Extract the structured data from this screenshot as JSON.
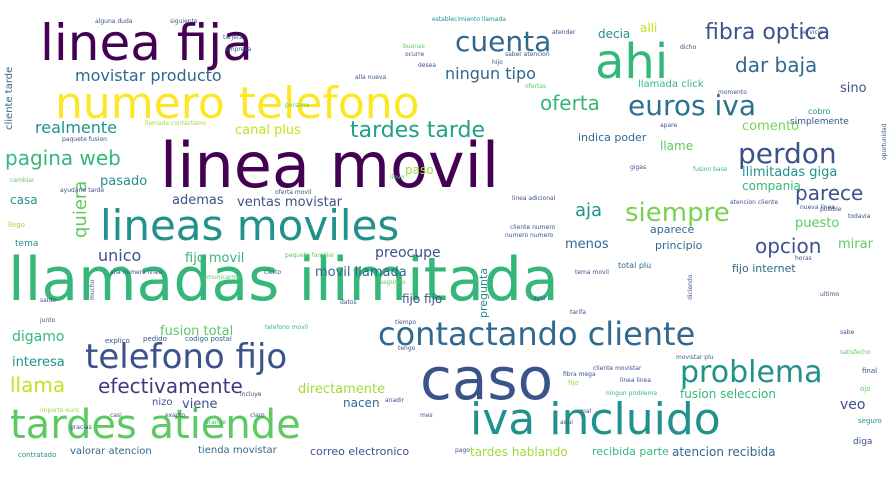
{
  "words": [
    {
      "text": "linea movil",
      "color": "#440154"
    },
    {
      "text": "llamadas ilimitada",
      "color": "#35b779"
    },
    {
      "text": "numero telefono",
      "color": "#fde725"
    },
    {
      "text": "linea fija",
      "color": "#440154"
    },
    {
      "text": "caso",
      "color": "#3b528b"
    },
    {
      "text": "lineas moviles",
      "color": "#21918c"
    },
    {
      "text": "tardes atiende",
      "color": "#5ec962"
    },
    {
      "text": "iva incluido",
      "color": "#21918c"
    },
    {
      "text": "contactando cliente",
      "color": "#31688e"
    },
    {
      "text": "telefono fijo",
      "color": "#3b528b"
    },
    {
      "text": "ahi",
      "color": "#35b779"
    },
    {
      "text": "cuenta",
      "color": "#31688e"
    },
    {
      "text": "problema",
      "color": "#21918c"
    },
    {
      "text": "euros iva",
      "color": "#2c728e"
    },
    {
      "text": "perdon",
      "color": "#3b528b"
    },
    {
      "text": "siempre",
      "color": "#7ad151"
    },
    {
      "text": "fibra optica",
      "color": "#3b528b"
    },
    {
      "text": "dar baja",
      "color": "#31688e"
    },
    {
      "text": "oferta",
      "color": "#35b779"
    },
    {
      "text": "tardes tarde",
      "color": "#1fa187"
    },
    {
      "text": "pagina web",
      "color": "#35b779"
    },
    {
      "text": "efectivamente",
      "color": "#443983"
    },
    {
      "text": "parece",
      "color": "#3b528b"
    },
    {
      "text": "opcion",
      "color": "#3b528b"
    },
    {
      "text": "ningun tipo",
      "color": "#31688e"
    },
    {
      "text": "movistar producto",
      "color": "#31688e"
    },
    {
      "text": "realmente",
      "color": "#21918c"
    },
    {
      "text": "unico",
      "color": "#3b528b"
    },
    {
      "text": "quiera",
      "color": "#5ec962"
    },
    {
      "text": "aja",
      "color": "#21918c"
    },
    {
      "text": "llama",
      "color": "#c8e020"
    },
    {
      "text": "digamo",
      "color": "#35b779"
    },
    {
      "text": "ventas movistar",
      "color": "#3b528b"
    },
    {
      "text": "ademas",
      "color": "#3b528b"
    },
    {
      "text": "fijo movil",
      "color": "#35b779"
    },
    {
      "text": "preocupe",
      "color": "#3b528b"
    },
    {
      "text": "movil llamada",
      "color": "#31688e"
    },
    {
      "text": "fusion total",
      "color": "#5ec962"
    },
    {
      "text": "interesa",
      "color": "#21918c"
    },
    {
      "text": "directamente",
      "color": "#a0da39"
    },
    {
      "text": "viene",
      "color": "#3b528b"
    },
    {
      "text": "nacen",
      "color": "#31688e"
    },
    {
      "text": "menos",
      "color": "#31688e"
    },
    {
      "text": "mirar",
      "color": "#5ec962"
    },
    {
      "text": "puesto",
      "color": "#5ec962"
    },
    {
      "text": "veo",
      "color": "#3b528b"
    },
    {
      "text": "comento",
      "color": "#7ad151"
    },
    {
      "text": "ilimitadas giga",
      "color": "#21918c"
    },
    {
      "text": "compania",
      "color": "#35b779"
    },
    {
      "text": "canal plus",
      "color": "#c8e020"
    },
    {
      "text": "pasado",
      "color": "#21918c"
    },
    {
      "text": "casa",
      "color": "#21918c"
    },
    {
      "text": "indica poder",
      "color": "#31688e"
    },
    {
      "text": "fijo internet",
      "color": "#31688e"
    },
    {
      "text": "fijo fijo",
      "color": "#3b528b"
    },
    {
      "text": "tardes hablando",
      "color": "#a0da39"
    },
    {
      "text": "atencion recibida",
      "color": "#31688e"
    },
    {
      "text": "fusion seleccion",
      "color": "#35b779"
    },
    {
      "text": "correo electronico",
      "color": "#3b528b"
    },
    {
      "text": "pregunta",
      "color": "#21918c"
    },
    {
      "text": "llame",
      "color": "#5ec962"
    },
    {
      "text": "sino",
      "color": "#3b528b"
    },
    {
      "text": "decia",
      "color": "#21918c"
    },
    {
      "text": "alli",
      "color": "#c8e020"
    },
    {
      "text": "nizo",
      "color": "#3b528b"
    },
    {
      "text": "paso",
      "color": "#a0da39"
    },
    {
      "text": "aparece",
      "color": "#31688e"
    },
    {
      "text": "principio",
      "color": "#31688e"
    },
    {
      "text": "recibida parte",
      "color": "#35b779"
    },
    {
      "text": "tienda movistar",
      "color": "#31688e"
    },
    {
      "text": "valorar atencion",
      "color": "#31688e"
    },
    {
      "text": "contratado",
      "color": "#21918c"
    },
    {
      "text": "cliente tarde",
      "color": "#31688e"
    },
    {
      "text": "llamada click",
      "color": "#35b779"
    },
    {
      "text": "cobro",
      "color": "#21918c"
    },
    {
      "text": "simplemente",
      "color": "#3b528b"
    },
    {
      "text": "tema",
      "color": "#21918c"
    },
    {
      "text": "llego",
      "color": "#a0da39"
    },
    {
      "text": "total plu",
      "color": "#31688e"
    },
    {
      "text": "fusion base",
      "color": "#35b779"
    },
    {
      "text": "pago",
      "color": "#3b528b"
    },
    {
      "text": "diga",
      "color": "#3b528b"
    },
    {
      "text": "tengo",
      "color": "#3b528b"
    },
    {
      "text": "cliente movistar",
      "color": "#3b528b"
    },
    {
      "text": "linea linea",
      "color": "#3b528b"
    },
    {
      "text": "ningun problema",
      "color": "#35b779"
    },
    {
      "text": "movistar plu",
      "color": "#31688e"
    },
    {
      "text": "fibra mega",
      "color": "#3b528b"
    },
    {
      "text": "fijo",
      "color": "#a0da39"
    },
    {
      "text": "final",
      "color": "#3b528b"
    },
    {
      "text": "ojo",
      "color": "#5ec962"
    },
    {
      "text": "seguro",
      "color": "#21918c"
    },
    {
      "text": "explico",
      "color": "#3b528b"
    },
    {
      "text": "pedido",
      "color": "#3b528b"
    },
    {
      "text": "codigo postal",
      "color": "#31688e"
    },
    {
      "text": "telefono movil",
      "color": "#35b779"
    },
    {
      "text": "importe euro",
      "color": "#a0da39"
    },
    {
      "text": "orange",
      "color": "#35b779"
    },
    {
      "text": "ayer",
      "color": "#3b528b"
    },
    {
      "text": "mal",
      "color": "#3b528b"
    },
    {
      "text": "alguna duda",
      "color": "#3b528b"
    },
    {
      "text": "siguiente",
      "color": "#3b528b"
    },
    {
      "text": "tarjeta",
      "color": "#31688e"
    },
    {
      "text": "empresa",
      "color": "#3b528b"
    },
    {
      "text": "establecimiento llamada",
      "color": "#21918c"
    },
    {
      "text": "buenas",
      "color": "#5ec962"
    },
    {
      "text": "alla nueva",
      "color": "#3b528b"
    },
    {
      "text": "desea",
      "color": "#3b528b"
    },
    {
      "text": "ocurre",
      "color": "#3b528b"
    },
    {
      "text": "hijo",
      "color": "#3b528b"
    },
    {
      "text": "saber atencion",
      "color": "#3b528b"
    },
    {
      "text": "persona",
      "color": "#5ec962"
    },
    {
      "text": "llamada contactamo",
      "color": "#a0da39"
    },
    {
      "text": "paquete fusion",
      "color": "#3b528b"
    },
    {
      "text": "ayudarle tarde",
      "color": "#3b528b"
    },
    {
      "text": "linea adicional",
      "color": "#3b528b"
    },
    {
      "text": "cambiar",
      "color": "#5ec962"
    },
    {
      "text": "dicho",
      "color": "#3b528b"
    },
    {
      "text": "momento",
      "color": "#3b528b"
    },
    {
      "text": "apare",
      "color": "#3b528b"
    },
    {
      "text": "sabe",
      "color": "#3b528b"
    },
    {
      "text": "nueva linea",
      "color": "#3b528b"
    },
    {
      "text": "todavia",
      "color": "#3b528b"
    },
    {
      "text": "posible",
      "color": "#3b528b"
    },
    {
      "text": "paquete familiar",
      "color": "#5ec962"
    },
    {
      "text": "mucho",
      "color": "#3b528b"
    },
    {
      "text": "oportunidad",
      "color": "#3b528b"
    },
    {
      "text": "segundo",
      "color": "#5ec962"
    },
    {
      "text": "saldo",
      "color": "#3b528b"
    },
    {
      "text": "diciendo",
      "color": "#3b528b"
    },
    {
      "text": "llevo",
      "color": "#5ec962"
    },
    {
      "text": "alla numero linea",
      "color": "#3b528b"
    },
    {
      "text": "cierto",
      "color": "#3b528b"
    },
    {
      "text": "atender",
      "color": "#3b528b"
    },
    {
      "text": "cliente numero",
      "color": "#3b528b"
    },
    {
      "text": "numero numero",
      "color": "#3b528b"
    },
    {
      "text": "datos",
      "color": "#3b528b"
    },
    {
      "text": "tarifa",
      "color": "#3b528b"
    },
    {
      "text": "junto",
      "color": "#3b528b"
    },
    {
      "text": "ultimo",
      "color": "#3b528b"
    },
    {
      "text": "comunicarme",
      "color": "#5ec962"
    },
    {
      "text": "tema movil",
      "color": "#3b528b"
    },
    {
      "text": "incluye",
      "color": "#3b528b"
    },
    {
      "text": "mes",
      "color": "#3b528b"
    },
    {
      "text": "exacto",
      "color": "#3b528b"
    },
    {
      "text": "claro",
      "color": "#3b528b"
    },
    {
      "text": "anadir",
      "color": "#3b528b"
    },
    {
      "text": "casi",
      "color": "#3b528b"
    },
    {
      "text": "satisfecho",
      "color": "#5ec962"
    },
    {
      "text": "gracias",
      "color": "#3b528b"
    },
    {
      "text": "aqui",
      "color": "#3b528b"
    },
    {
      "text": "horas",
      "color": "#3b528b"
    },
    {
      "text": "gigas",
      "color": "#3b528b"
    },
    {
      "text": "servicio",
      "color": "#3b528b"
    },
    {
      "text": "tiempo",
      "color": "#3b528b"
    },
    {
      "text": "oferta movil",
      "color": "#3b528b"
    },
    {
      "text": "ofertas",
      "color": "#5ec962"
    },
    {
      "text": "atencion cliente",
      "color": "#3b528b"
    }
  ]
}
